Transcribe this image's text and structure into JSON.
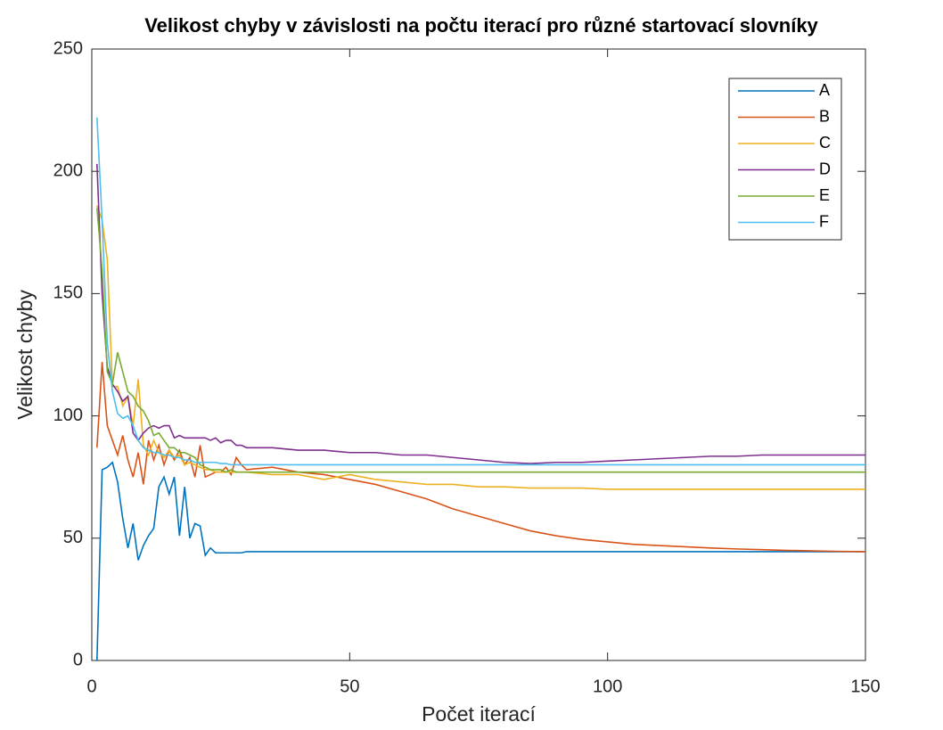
{
  "chart_data": {
    "type": "line",
    "title": "Velikost chyby v závislosti na počtu iterací pro různé startovací slovníky",
    "xlabel": "Počet iterací",
    "ylabel": "Velikost chyby",
    "xlim": [
      0,
      150
    ],
    "ylim": [
      0,
      250
    ],
    "xticks": [
      0,
      50,
      100,
      150
    ],
    "yticks": [
      0,
      50,
      100,
      150,
      200,
      250
    ],
    "grid": false,
    "legend": "upper right",
    "x": [
      1,
      2,
      3,
      4,
      5,
      6,
      7,
      8,
      9,
      10,
      11,
      12,
      13,
      14,
      15,
      16,
      17,
      18,
      19,
      20,
      21,
      22,
      23,
      24,
      25,
      26,
      27,
      28,
      29,
      30,
      35,
      40,
      45,
      50,
      55,
      60,
      65,
      70,
      75,
      80,
      85,
      90,
      95,
      100,
      105,
      110,
      115,
      120,
      125,
      130,
      135,
      140,
      145,
      150
    ],
    "series": [
      {
        "name": "A",
        "color": "#0072BD",
        "values": [
          0,
          78,
          79,
          81,
          73,
          58,
          46,
          56,
          41,
          47,
          51,
          54,
          71,
          75,
          68,
          75,
          51,
          71,
          50,
          56,
          55,
          43,
          46,
          44,
          44,
          44,
          44,
          44,
          44,
          44.5,
          44.5,
          44.5,
          44.5,
          44.5,
          44.5,
          44.5,
          44.5,
          44.5,
          44.5,
          44.5,
          44.5,
          44.5,
          44.5,
          44.5,
          44.5,
          44.5,
          44.5,
          44.5,
          44.5,
          44.5,
          44.5,
          44.5,
          44.5,
          44.5
        ]
      },
      {
        "name": "B",
        "color": "#D95319",
        "values": [
          87,
          122,
          96,
          90,
          84,
          92,
          82,
          75,
          85,
          72,
          90,
          82,
          88,
          80,
          86,
          82,
          86,
          80,
          83,
          75,
          88,
          75,
          76,
          77,
          77,
          79,
          76,
          83,
          80,
          78,
          79,
          77,
          76,
          74,
          72,
          69,
          66,
          62,
          59,
          56,
          53,
          51,
          49.5,
          48.5,
          47.5,
          47,
          46.5,
          46,
          45.6,
          45.3,
          45,
          44.8,
          44.6,
          44.5
        ]
      },
      {
        "name": "C",
        "color": "#EDB120",
        "values": [
          186,
          180,
          164,
          112,
          112,
          104,
          108,
          96,
          115,
          88,
          84,
          90,
          85,
          83,
          86,
          83,
          84,
          80,
          81,
          80,
          79,
          78,
          78,
          77,
          77,
          77,
          77,
          77,
          77,
          77,
          76,
          76,
          74,
          76,
          74,
          73,
          72,
          72,
          71,
          71,
          70.5,
          70.5,
          70.5,
          70,
          70,
          70,
          70,
          70,
          70,
          70,
          70,
          70,
          70,
          70
        ]
      },
      {
        "name": "D",
        "color": "#7E2F8E",
        "values": [
          203,
          150,
          120,
          113,
          110,
          106,
          108,
          93,
          90,
          93,
          95,
          96,
          95,
          96,
          96,
          91,
          92,
          91,
          91,
          91,
          91,
          91,
          90,
          91,
          89,
          90,
          90,
          88,
          88,
          87,
          87,
          86,
          86,
          85,
          85,
          84,
          84,
          83,
          82,
          81,
          80.5,
          81,
          81,
          81.5,
          82,
          82.5,
          83,
          83.5,
          83.5,
          84,
          84,
          84,
          84,
          84
        ]
      },
      {
        "name": "E",
        "color": "#77AC30",
        "values": [
          185,
          160,
          118,
          113,
          126,
          118,
          110,
          108,
          104,
          102,
          98,
          92,
          93,
          90,
          87,
          87,
          85,
          85,
          84,
          83,
          80,
          79,
          78,
          78,
          78,
          77,
          78,
          77,
          77,
          77,
          77,
          77,
          77,
          77,
          77,
          77,
          77,
          77,
          77,
          77,
          77,
          77,
          77,
          77,
          77,
          77,
          77,
          77,
          77,
          77,
          77,
          77,
          77,
          77
        ]
      },
      {
        "name": "F",
        "color": "#4DBEEE",
        "values": [
          222,
          180,
          130,
          110,
          101,
          99,
          100,
          96,
          90,
          87,
          86,
          85,
          85,
          84,
          84,
          83,
          83,
          82,
          82,
          81,
          81,
          81,
          81,
          81,
          80.5,
          80.5,
          80,
          80,
          80,
          80,
          80,
          80,
          80,
          80,
          80,
          80,
          80,
          80,
          80,
          80,
          80,
          80,
          80,
          80,
          80,
          80,
          80,
          80,
          80,
          80,
          80,
          80,
          80,
          80
        ]
      }
    ]
  }
}
